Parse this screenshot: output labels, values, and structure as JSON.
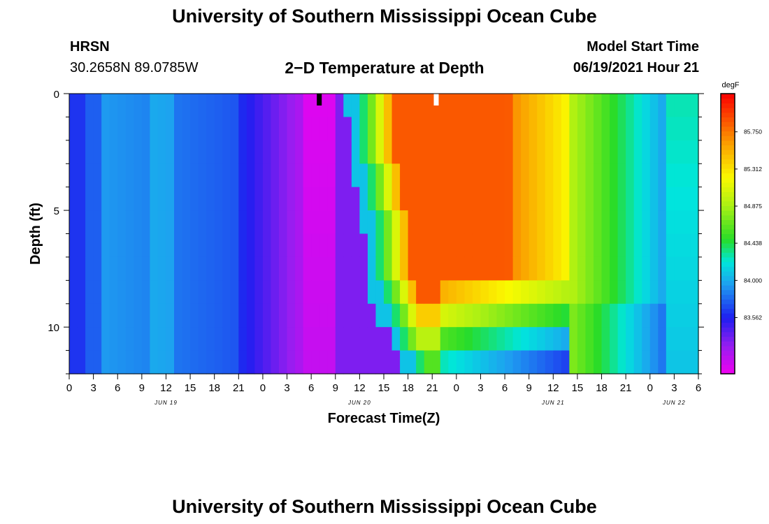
{
  "header": {
    "title": "University of Southern Mississippi Ocean Cube",
    "footer_title": "University of Southern Mississippi Ocean Cube",
    "station": "HRSN",
    "coords": "30.2658N  89.0785W",
    "model_start_label": "Model Start Time",
    "model_start_value": "06/19/2021 Hour 21"
  },
  "chart_data": {
    "type": "heatmap",
    "title": "2−D Temperature at Depth",
    "xlabel": "Forecast Time(Z)",
    "ylabel": "Depth (ft)",
    "units": "degF",
    "xlim_hours": [
      0,
      78
    ],
    "ylim_ft": [
      0,
      12
    ],
    "y_reversed": true,
    "x_ticks": [
      "0",
      "3",
      "6",
      "9",
      "12",
      "15",
      "18",
      "21",
      "0",
      "3",
      "6",
      "9",
      "12",
      "15",
      "18",
      "21",
      "0",
      "3",
      "6",
      "9",
      "12",
      "15",
      "18",
      "21",
      "0",
      "3",
      "6"
    ],
    "y_ticks": [
      "0",
      "5",
      "10"
    ],
    "date_labels": [
      {
        "hour": 12,
        "label": "JUN 19"
      },
      {
        "hour": 36,
        "label": "JUN 20"
      },
      {
        "hour": 60,
        "label": "JUN 21"
      },
      {
        "hour": 75,
        "label": "JUN 22"
      }
    ],
    "colorbar": {
      "unit": "degF",
      "labels": [
        "85.750",
        "85.312",
        "84.875",
        "84.438",
        "84.000",
        "83.562"
      ],
      "min": 82.9,
      "max": 86.2
    },
    "markers": [
      {
        "hour": 31,
        "color": "#000000"
      },
      {
        "hour": 45.5,
        "color": "#ffffff"
      }
    ],
    "grid": false
  }
}
